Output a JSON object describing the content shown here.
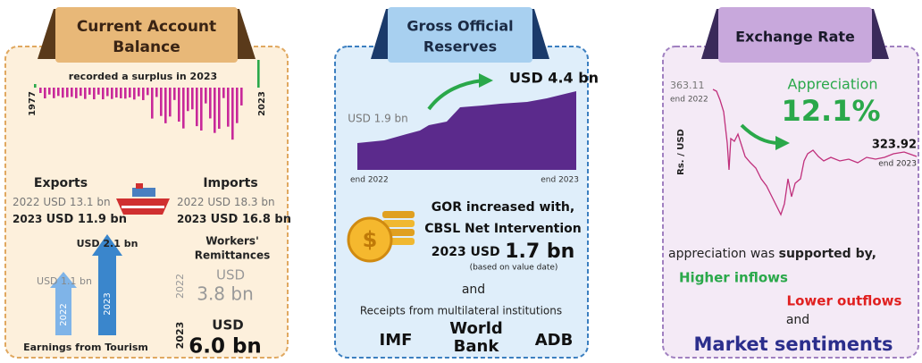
{
  "current_account": {
    "title": [
      "Current Account",
      "Balance"
    ],
    "note": "recorded a surplus in 2023",
    "start_year": "1977",
    "end_year": "2023",
    "exports": {
      "label": "Exports",
      "rows": [
        {
          "year": "2022",
          "value": "USD 13.1 bn"
        },
        {
          "year": "2023",
          "value": "USD 11.9 bn"
        }
      ]
    },
    "imports": {
      "label": "Imports",
      "rows": [
        {
          "year": "2022",
          "value": "USD 18.3 bn"
        },
        {
          "year": "2023",
          "value": "USD 16.8 bn"
        }
      ]
    },
    "tourism": {
      "label": "Earnings from Tourism",
      "bars": [
        {
          "year": "2022",
          "value": "USD 1.1 bn"
        },
        {
          "year": "2023",
          "value": "USD 2.1 bn"
        }
      ]
    },
    "remittances": {
      "label": [
        "Workers'",
        "Remittances"
      ],
      "rows": [
        {
          "year": "2022",
          "unit": "USD",
          "amount": "3.8 bn"
        },
        {
          "year": "2023",
          "unit": "USD",
          "amount": "6.0 bn"
        }
      ]
    }
  },
  "reserves": {
    "title": [
      "Gross Official",
      "Reserves"
    ],
    "end_value": "USD 4.4 bn",
    "start_value": "USD 1.9 bn",
    "start_label": "end 2022",
    "end_label": "end 2023",
    "text": {
      "line1": "GOR increased with,",
      "line2": "CBSL Net Intervention",
      "prefix": "2023 USD",
      "amount": "1.7 bn",
      "note": "(based on value date)",
      "and": "and",
      "receipts": "Receipts from multilateral institutions"
    },
    "institutions": [
      "IMF",
      [
        "World",
        "Bank"
      ],
      "ADB"
    ]
  },
  "exchange_rate": {
    "title": "Exchange Rate",
    "start_value": "363.11",
    "start_label": "end 2022",
    "headline": "Appreciation",
    "change": "12.1%",
    "axis_label": "Rs. / USD",
    "end_value": "323.92",
    "end_label": "end 2023",
    "text": {
      "lead": "appreciation was ",
      "lead_bold": "supported by,",
      "factor1": "Higher inflows",
      "factor2": "Lower outflows",
      "and": "and",
      "factor3": "Market sentiments"
    }
  }
}
